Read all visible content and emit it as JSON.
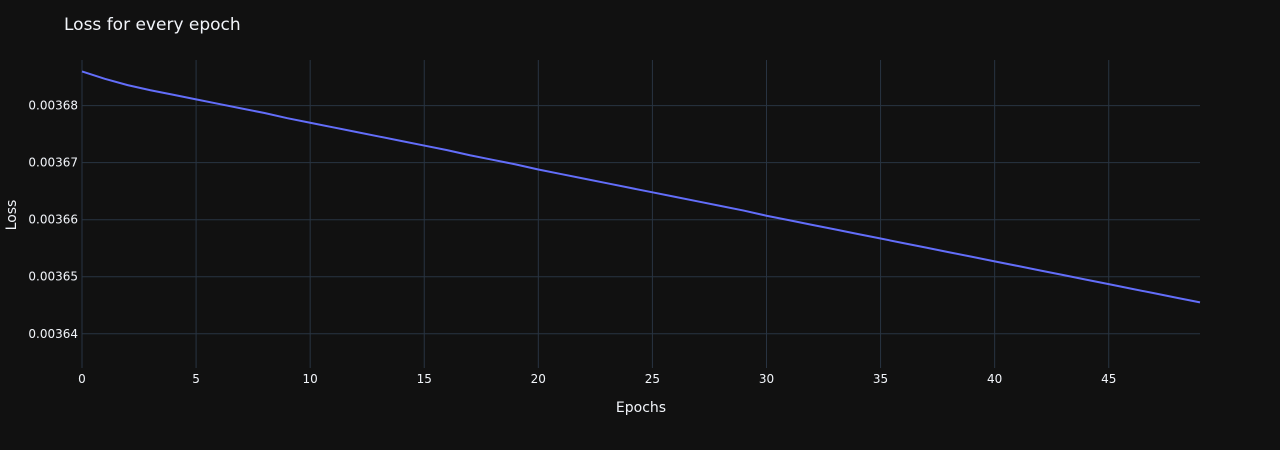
{
  "chart_data": {
    "type": "line",
    "title": "Loss for every epoch",
    "xlabel": "Epochs",
    "ylabel": "Loss",
    "xlim": [
      0,
      49
    ],
    "ylim": [
      0.003634,
      0.003688
    ],
    "xticks": [
      0,
      5,
      10,
      15,
      20,
      25,
      30,
      35,
      40,
      45
    ],
    "xtick_labels": [
      "0",
      "5",
      "10",
      "15",
      "20",
      "25",
      "30",
      "35",
      "40",
      "45"
    ],
    "yticks": [
      0.00364,
      0.00365,
      0.00366,
      0.00367,
      0.00368
    ],
    "ytick_labels": [
      "0.00364",
      "0.00365",
      "0.00366",
      "0.00367",
      "0.00368"
    ],
    "grid": true,
    "background_color": "#111111",
    "grid_color": "#283442",
    "series": [
      {
        "color": "#636efa",
        "x": [
          0,
          1,
          2,
          3,
          4,
          5,
          6,
          7,
          8,
          9,
          10,
          11,
          12,
          13,
          14,
          15,
          16,
          17,
          18,
          19,
          20,
          21,
          22,
          23,
          24,
          25,
          26,
          27,
          28,
          29,
          30,
          31,
          32,
          33,
          34,
          35,
          36,
          37,
          38,
          39,
          40,
          41,
          42,
          43,
          44,
          45,
          46,
          47,
          48,
          49
        ],
        "y": [
          0.003686,
          0.0036847,
          0.0036836,
          0.0036827,
          0.0036819,
          0.0036811,
          0.0036803,
          0.0036795,
          0.0036787,
          0.0036778,
          0.003677,
          0.0036762,
          0.0036754,
          0.0036746,
          0.0036738,
          0.003673,
          0.0036722,
          0.0036713,
          0.0036705,
          0.0036697,
          0.0036688,
          0.003668,
          0.0036672,
          0.0036664,
          0.0036656,
          0.0036648,
          0.003664,
          0.0036632,
          0.0036624,
          0.0036616,
          0.0036607,
          0.0036599,
          0.0036591,
          0.0036583,
          0.0036575,
          0.0036567,
          0.0036559,
          0.0036551,
          0.0036543,
          0.0036535,
          0.0036527,
          0.0036519,
          0.0036511,
          0.0036503,
          0.0036495,
          0.0036487,
          0.0036479,
          0.0036471,
          0.0036463,
          0.0036455
        ]
      }
    ]
  }
}
